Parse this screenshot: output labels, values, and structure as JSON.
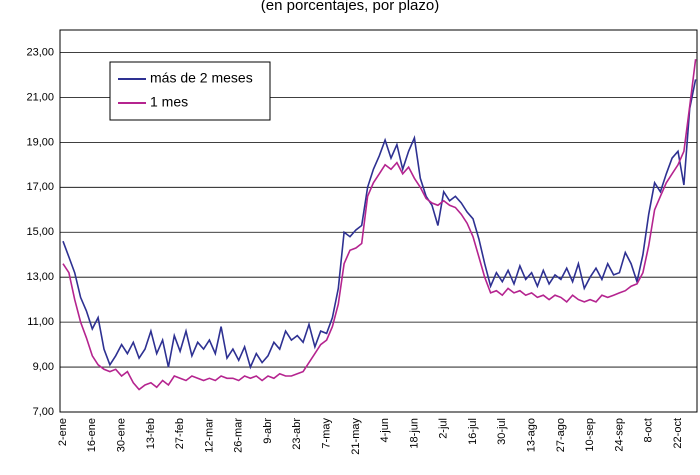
{
  "chart_data": {
    "type": "line",
    "title": "(en porcentajes, por plazo)",
    "categories": [
      "2-ene",
      null,
      null,
      null,
      null,
      "16-ene",
      null,
      null,
      null,
      null,
      "30-ene",
      null,
      null,
      null,
      null,
      "13-feb",
      null,
      null,
      null,
      null,
      "27-feb",
      null,
      null,
      null,
      null,
      "12-mar",
      null,
      null,
      null,
      null,
      "26-mar",
      null,
      null,
      null,
      null,
      "9-abr",
      null,
      null,
      null,
      null,
      "23-abr",
      null,
      null,
      null,
      null,
      "7-may",
      null,
      null,
      null,
      null,
      "21-may",
      null,
      null,
      null,
      null,
      "4-jun",
      null,
      null,
      null,
      null,
      "18-jun",
      null,
      null,
      null,
      null,
      "2-jul",
      null,
      null,
      null,
      null,
      "16-jul",
      null,
      null,
      null,
      null,
      "30-jul",
      null,
      null,
      null,
      null,
      "13-ago",
      null,
      null,
      null,
      null,
      "27-ago",
      null,
      null,
      null,
      null,
      "10-sep",
      null,
      null,
      null,
      null,
      "24-sep",
      null,
      null,
      null,
      null,
      "8-oct",
      null,
      null,
      null,
      null,
      "22-oct",
      null,
      null,
      null
    ],
    "series": [
      {
        "name": "más de 2 meses",
        "color": "#2e3192",
        "values": [
          14.6,
          13.9,
          13.2,
          12.1,
          11.5,
          10.7,
          11.2,
          9.8,
          9.1,
          9.5,
          10.0,
          9.6,
          10.1,
          9.4,
          9.8,
          10.6,
          9.6,
          10.2,
          9.0,
          10.4,
          9.7,
          10.6,
          9.5,
          10.1,
          9.8,
          10.2,
          9.6,
          10.8,
          9.4,
          9.8,
          9.3,
          9.9,
          9.0,
          9.6,
          9.2,
          9.5,
          10.1,
          9.8,
          10.6,
          10.2,
          10.4,
          10.1,
          10.9,
          9.9,
          10.6,
          10.5,
          11.2,
          12.5,
          15.0,
          14.8,
          15.1,
          15.3,
          17.0,
          17.8,
          18.4,
          19.1,
          18.3,
          18.9,
          17.8,
          18.6,
          19.2,
          17.4,
          16.6,
          16.2,
          15.3,
          16.8,
          16.4,
          16.6,
          16.3,
          15.9,
          15.6,
          14.7,
          13.6,
          12.6,
          13.2,
          12.8,
          13.3,
          12.7,
          13.5,
          12.9,
          13.2,
          12.6,
          13.3,
          12.7,
          13.1,
          12.9,
          13.4,
          12.8,
          13.6,
          12.5,
          13.0,
          13.4,
          12.9,
          13.6,
          13.1,
          13.2,
          14.1,
          13.6,
          12.8,
          14.0,
          15.8,
          17.2,
          16.8,
          17.6,
          18.3,
          18.6,
          17.1,
          20.5,
          21.8
        ]
      },
      {
        "name": "1 mes",
        "color": "#b5248f",
        "values": [
          13.6,
          13.2,
          12.0,
          11.0,
          10.3,
          9.5,
          9.1,
          8.9,
          8.8,
          8.9,
          8.6,
          8.8,
          8.3,
          8.0,
          8.2,
          8.3,
          8.1,
          8.4,
          8.2,
          8.6,
          8.5,
          8.4,
          8.6,
          8.5,
          8.4,
          8.5,
          8.4,
          8.6,
          8.5,
          8.5,
          8.4,
          8.6,
          8.5,
          8.6,
          8.4,
          8.6,
          8.5,
          8.7,
          8.6,
          8.6,
          8.7,
          8.8,
          9.2,
          9.6,
          10.0,
          10.2,
          10.8,
          11.8,
          13.6,
          14.2,
          14.3,
          14.5,
          16.6,
          17.2,
          17.6,
          18.0,
          17.8,
          18.1,
          17.6,
          17.9,
          17.4,
          17.0,
          16.5,
          16.3,
          16.2,
          16.4,
          16.2,
          16.1,
          15.8,
          15.4,
          14.8,
          13.9,
          13.0,
          12.3,
          12.4,
          12.2,
          12.5,
          12.3,
          12.4,
          12.2,
          12.3,
          12.1,
          12.2,
          12.0,
          12.2,
          12.1,
          11.9,
          12.2,
          12.0,
          11.9,
          12.0,
          11.9,
          12.2,
          12.1,
          12.2,
          12.3,
          12.4,
          12.6,
          12.7,
          13.2,
          14.4,
          16.0,
          16.6,
          17.2,
          17.6,
          18.0,
          18.6,
          20.6,
          22.7
        ]
      }
    ],
    "ylim": [
      7,
      24
    ],
    "yticks": [
      {
        "value": 7,
        "label": "7,00"
      },
      {
        "value": 9,
        "label": "9,00"
      },
      {
        "value": 11,
        "label": "11,00"
      },
      {
        "value": 13,
        "label": "13,00"
      },
      {
        "value": 15,
        "label": "15,00"
      },
      {
        "value": 17,
        "label": "17,00"
      },
      {
        "value": 19,
        "label": "19,00"
      },
      {
        "value": 21,
        "label": "21,00"
      },
      {
        "value": 23,
        "label": "23,00"
      }
    ],
    "grid": true,
    "legend": "upper-left"
  }
}
